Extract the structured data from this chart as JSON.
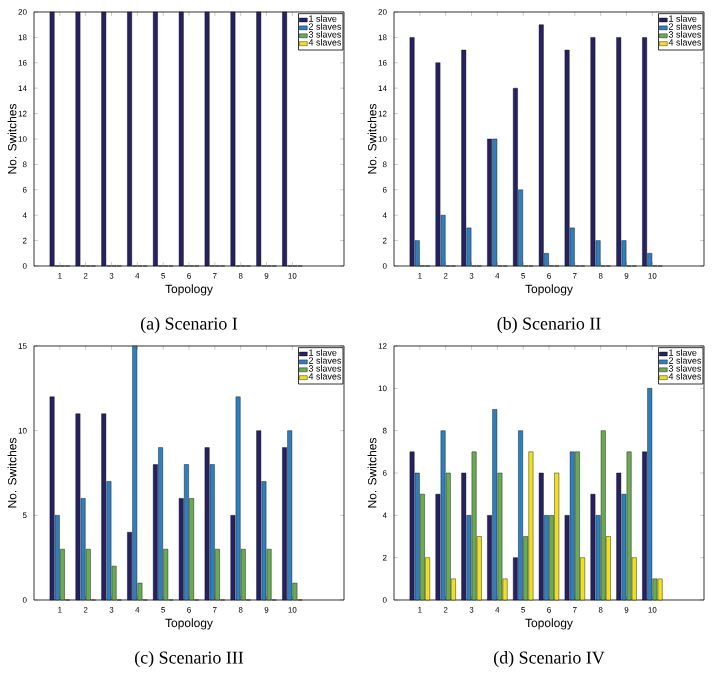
{
  "chart_data": [
    {
      "type": "bar",
      "xlabel": "Topology",
      "ylabel": "No. Switches",
      "x": [
        1,
        2,
        3,
        4,
        5,
        6,
        7,
        8,
        9,
        10
      ],
      "xlim": [
        0,
        12
      ],
      "xticks": [
        1,
        2,
        3,
        4,
        5,
        6,
        7,
        8,
        9,
        10
      ],
      "ylim": [
        0,
        20
      ],
      "yticks": [
        0,
        2,
        4,
        6,
        8,
        10,
        12,
        14,
        16,
        18,
        20
      ],
      "legend": "top right",
      "annotations": [
        "(a) Scenario I"
      ],
      "series": [
        {
          "name": "1 slave",
          "color": "#262262",
          "values": [
            20,
            20,
            20,
            20,
            20,
            20,
            20,
            20,
            20,
            20
          ]
        },
        {
          "name": "2 slaves",
          "color": "#2f7fbf",
          "values": [
            0,
            0,
            0,
            0,
            0,
            0,
            0,
            0,
            0,
            0
          ]
        },
        {
          "name": "3 slaves",
          "color": "#6aaa50",
          "values": [
            0,
            0,
            0,
            0,
            0,
            0,
            0,
            0,
            0,
            0
          ]
        },
        {
          "name": "4 slaves",
          "color": "#f0e020",
          "values": [
            0,
            0,
            0,
            0,
            0,
            0,
            0,
            0,
            0,
            0
          ]
        }
      ]
    },
    {
      "type": "bar",
      "xlabel": "Topology",
      "ylabel": "No. Switches",
      "x": [
        1,
        2,
        3,
        4,
        5,
        6,
        7,
        8,
        9,
        10
      ],
      "xlim": [
        0,
        12
      ],
      "xticks": [
        1,
        2,
        3,
        4,
        5,
        6,
        7,
        8,
        9,
        10
      ],
      "ylim": [
        0,
        20
      ],
      "yticks": [
        0,
        2,
        4,
        6,
        8,
        10,
        12,
        14,
        16,
        18,
        20
      ],
      "legend": "top right",
      "annotations": [
        "(b) Scenario II"
      ],
      "series": [
        {
          "name": "1 slave",
          "color": "#262262",
          "values": [
            18,
            16,
            17,
            10,
            14,
            19,
            17,
            18,
            18,
            18
          ]
        },
        {
          "name": "2 slaves",
          "color": "#2f7fbf",
          "values": [
            2,
            4,
            3,
            10,
            6,
            1,
            3,
            2,
            2,
            1
          ]
        },
        {
          "name": "3 slaves",
          "color": "#6aaa50",
          "values": [
            0,
            0,
            0,
            0,
            0,
            0,
            0,
            0,
            0,
            0
          ]
        },
        {
          "name": "4 slaves",
          "color": "#f0e020",
          "values": [
            0,
            0,
            0,
            0,
            0,
            0,
            0,
            0,
            0,
            0
          ]
        }
      ]
    },
    {
      "type": "bar",
      "xlabel": "Topology",
      "ylabel": "No. Switches",
      "x": [
        1,
        2,
        3,
        4,
        5,
        6,
        7,
        8,
        9,
        10
      ],
      "xlim": [
        0,
        12
      ],
      "xticks": [
        1,
        2,
        3,
        4,
        5,
        6,
        7,
        8,
        9,
        10
      ],
      "ylim": [
        0,
        15
      ],
      "yticks": [
        0,
        5,
        10,
        15
      ],
      "legend": "top right",
      "annotations": [
        "(c) Scenario III"
      ],
      "series": [
        {
          "name": "1 slave",
          "color": "#262262",
          "values": [
            12,
            11,
            11,
            4,
            8,
            6,
            9,
            5,
            10,
            9
          ]
        },
        {
          "name": "2 slaves",
          "color": "#2f7fbf",
          "values": [
            5,
            6,
            7,
            15,
            9,
            8,
            8,
            12,
            7,
            10
          ]
        },
        {
          "name": "3 slaves",
          "color": "#6aaa50",
          "values": [
            3,
            3,
            2,
            1,
            3,
            6,
            3,
            3,
            3,
            1
          ]
        },
        {
          "name": "4 slaves",
          "color": "#f0e020",
          "values": [
            0,
            0,
            0,
            0,
            0,
            0,
            0,
            0,
            0,
            0
          ]
        }
      ]
    },
    {
      "type": "bar",
      "xlabel": "Topology",
      "ylabel": "No. Switches",
      "x": [
        1,
        2,
        3,
        4,
        5,
        6,
        7,
        8,
        9,
        10
      ],
      "xlim": [
        0,
        12
      ],
      "xticks": [
        1,
        2,
        3,
        4,
        5,
        6,
        7,
        8,
        9,
        10
      ],
      "ylim": [
        0,
        12
      ],
      "yticks": [
        0,
        2,
        4,
        6,
        8,
        10,
        12
      ],
      "legend": "top right",
      "annotations": [
        "(d) Scenario IV"
      ],
      "series": [
        {
          "name": "1 slave",
          "color": "#262262",
          "values": [
            7,
            5,
            6,
            4,
            2,
            6,
            4,
            5,
            6,
            7
          ]
        },
        {
          "name": "2 slaves",
          "color": "#2f7fbf",
          "values": [
            6,
            8,
            4,
            9,
            8,
            4,
            7,
            4,
            5,
            10
          ]
        },
        {
          "name": "3 slaves",
          "color": "#6aaa50",
          "values": [
            5,
            6,
            7,
            6,
            3,
            4,
            7,
            8,
            7,
            1
          ]
        },
        {
          "name": "4 slaves",
          "color": "#f0e020",
          "values": [
            2,
            1,
            3,
            1,
            7,
            6,
            2,
            3,
            2,
            1
          ]
        }
      ]
    }
  ]
}
